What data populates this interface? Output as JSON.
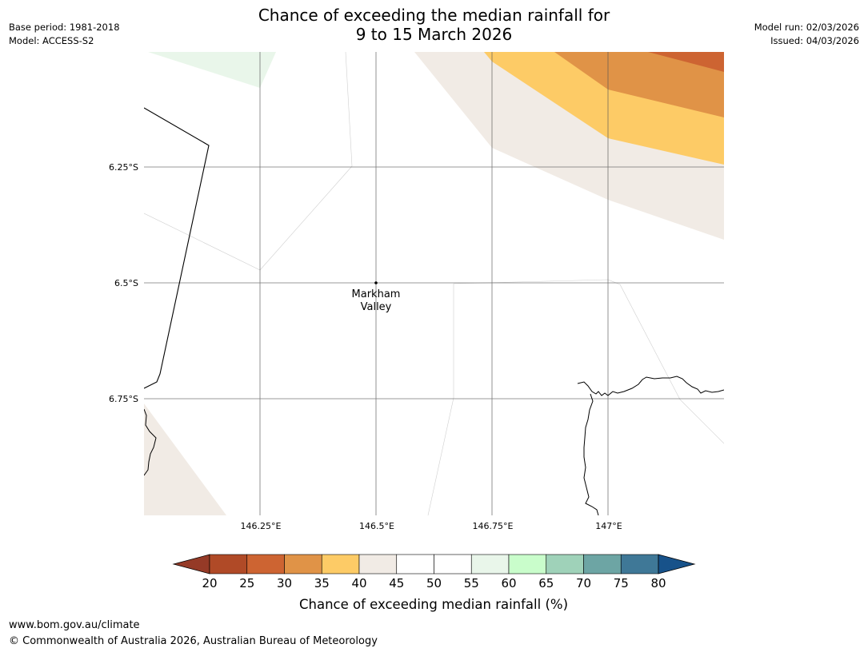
{
  "title": {
    "line1": "Chance of exceeding the median rainfall for",
    "line2": "9 to 15 March 2026"
  },
  "meta": {
    "base_period": "Base period: 1981-2018",
    "model": "Model: ACCESS-S2",
    "model_run": "Model run: 02/03/2026",
    "issued": "Issued: 04/03/2026"
  },
  "map": {
    "lat_labels": [
      "6.25°S",
      "6.5°S",
      "6.75°S"
    ],
    "lon_labels": [
      "146.25°E",
      "146.5°E",
      "146.75°E",
      "147°E"
    ],
    "place": {
      "name_line1": "Markham",
      "name_line2": "Valley"
    }
  },
  "colorbar": {
    "label": "Chance of exceeding median rainfall (%)",
    "ticks": [
      "20",
      "25",
      "30",
      "35",
      "40",
      "45",
      "50",
      "55",
      "60",
      "65",
      "70",
      "75",
      "80"
    ],
    "colors": [
      "#b04a27",
      "#cd6432",
      "#e09347",
      "#fdcb66",
      "#f1ebe5",
      "#ffffff",
      "#ffffff",
      "#e9f6ea",
      "#c9fdcb",
      "#9fd2b9",
      "#6da5a4",
      "#3f7897"
    ],
    "under_color": "#953a27",
    "over_color": "#17528a"
  },
  "footer": {
    "url": "www.bom.gov.au/climate",
    "copyright": "© Commonwealth of Australia 2026, Australian Bureau of Meteorology"
  }
}
